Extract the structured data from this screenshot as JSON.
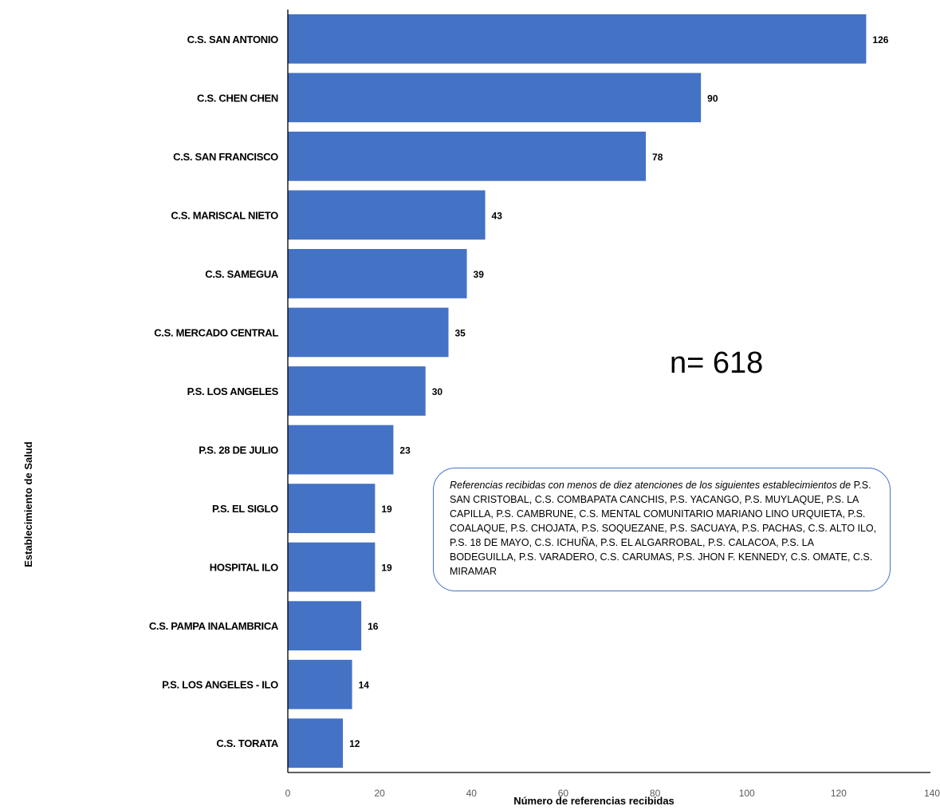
{
  "chart_data": {
    "type": "bar",
    "orientation": "horizontal",
    "categories": [
      "C.S. SAN ANTONIO",
      "C.S. CHEN CHEN",
      "C.S. SAN FRANCISCO",
      "C.S. MARISCAL NIETO",
      "C.S. SAMEGUA",
      "C.S. MERCADO CENTRAL",
      "P.S. LOS ANGELES",
      "P.S. 28 DE JULIO",
      "P.S. EL SIGLO",
      "HOSPITAL ILO",
      "C.S. PAMPA INALAMBRICA",
      "P.S. LOS ANGELES - ILO",
      "C.S. TORATA"
    ],
    "values": [
      126,
      90,
      78,
      43,
      39,
      35,
      30,
      23,
      19,
      19,
      16,
      14,
      12
    ],
    "xlabel": "Número de referencias recibidas",
    "ylabel": "Establecimiento de Salud",
    "xlim": [
      0,
      140
    ],
    "xticks": [
      0,
      20,
      40,
      60,
      80,
      100,
      120,
      140
    ],
    "grid": false,
    "bar_color": "#4472c4",
    "annotation_n": "n= 618",
    "note": {
      "italic": "Referencias recibidas con menos de diez atenciones de los siguientes establecimientos de",
      "text": "P.S. SAN CRISTOBAL, C.S. COMBAPATA CANCHIS, P.S. YACANGO, P.S. MUYLAQUE, P.S. LA CAPILLA, P.S. CAMBRUNE, C.S. MENTAL COMUNITARIO MARIANO LINO URQUIETA, P.S. COALAQUE, P.S. CHOJATA, P.S. SOQUEZANE, P.S. SACUAYA, P.S. PACHAS, C.S. ALTO ILO, P.S. 18 DE MAYO, C.S. ICHUÑA, P.S. EL ALGARROBAL, P.S. CALACOA, P.S. LA BODEGUILLA, P.S. VARADERO, C.S. CARUMAS, P.S. JHON F. KENNEDY, C.S. OMATE, C.S. MIRAMAR"
    }
  }
}
